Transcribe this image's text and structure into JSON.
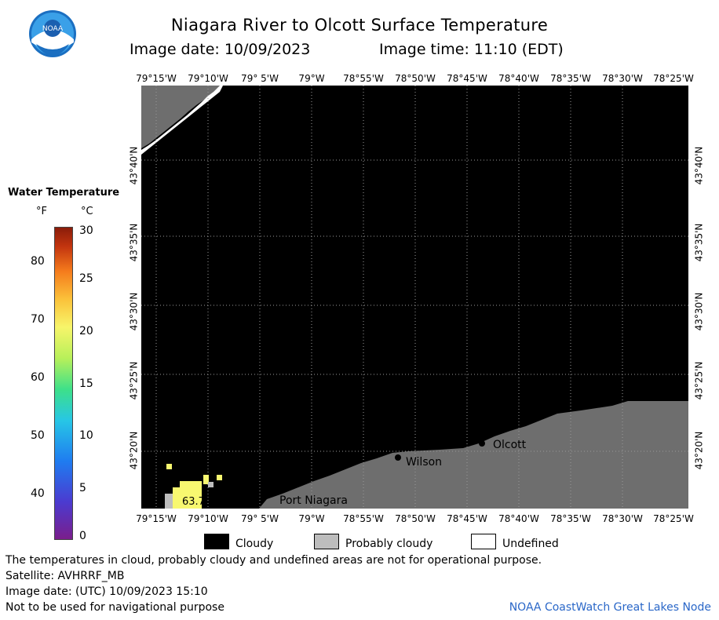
{
  "title": "Niagara River to Olcott Surface Temperature",
  "image_date": "Image date: 10/09/2023",
  "image_time": "Image time: 11:10 (EDT)",
  "logo": {
    "icon": "noaa-logo-icon",
    "text": "NOAA"
  },
  "longitude_ticks": [
    "79°15'W",
    "79°10'W",
    "79° 5'W",
    "79°W",
    "78°55'W",
    "78°50'W",
    "78°45'W",
    "78°40'W",
    "78°35'W",
    "78°30'W",
    "78°25'W"
  ],
  "latitude_ticks": [
    "43°40'N",
    "43°35'N",
    "43°30'N",
    "43°25'N",
    "43°20'N"
  ],
  "places": [
    "Olcott",
    "Wilson",
    "Port Niagara"
  ],
  "temperature_label": "63.7",
  "legend": {
    "title": "Water Temperature",
    "unit_f": "°F",
    "unit_c": "°C",
    "fahrenheit_ticks": [
      "80",
      "70",
      "60",
      "50",
      "40"
    ],
    "celsius_ticks": [
      "30",
      "25",
      "20",
      "15",
      "10",
      "5",
      "0"
    ]
  },
  "key": [
    {
      "label": "Cloudy",
      "color": "#000000"
    },
    {
      "label": "Probably cloudy",
      "color": "#bdbdbd"
    },
    {
      "label": "Undefined",
      "color": "#ffffff"
    }
  ],
  "colors": {
    "land": "#6e6e6e",
    "cloud": "#000000",
    "water_warm": "#f8f870",
    "credit": "#2a67c8"
  },
  "footer": {
    "disclaimer": "The temperatures in cloud, probably cloudy and undefined areas are not for operational purpose.",
    "satellite": "Satellite: AVHRRF_MB",
    "utc_date": "Image date: (UTC) 10/09/2023   15:10",
    "navigation": "Not to be used for navigational purpose",
    "credit": "NOAA CoastWatch Great Lakes Node"
  }
}
